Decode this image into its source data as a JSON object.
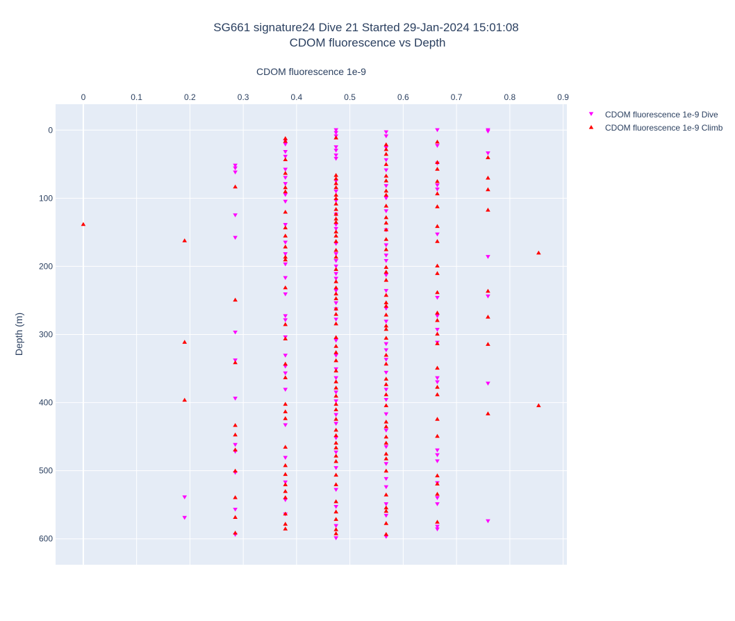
{
  "chart_data": {
    "type": "scatter",
    "title": "SG661 signature24 Dive 21 Started 29-Jan-2024 15:01:08",
    "subtitle": "CDOM fluorescence vs Depth",
    "xlabel": "CDOM fluorescence 1e-9",
    "ylabel": "Depth (m)",
    "x_axis_position": "top",
    "y_reversed": true,
    "xlim": [
      -0.052,
      0.907
    ],
    "ylim": [
      -38,
      638
    ],
    "xticks": [
      "0",
      "0.1",
      "0.2",
      "0.3",
      "0.4",
      "0.5",
      "0.6",
      "0.7",
      "0.8",
      "0.9"
    ],
    "xtick_values": [
      0,
      0.1,
      0.2,
      0.3,
      0.4,
      0.5,
      0.6,
      0.7,
      0.8,
      0.9
    ],
    "yticks": [
      "0",
      "100",
      "200",
      "300",
      "400",
      "500",
      "600"
    ],
    "ytick_values": [
      0,
      100,
      200,
      300,
      400,
      500,
      600
    ],
    "grid": true,
    "legend_position": "top-right",
    "colors": {
      "dive": "#ff00ff",
      "climb": "#ff0000",
      "plot_bg": "#e5ecf6",
      "grid": "#ffffff"
    },
    "series": [
      {
        "name": "CDOM fluorescence 1e-9 Dive",
        "marker": "triangle-down",
        "color": "#ff00ff",
        "points": [
          [
            0.285,
            52
          ],
          [
            0.285,
            56
          ],
          [
            0.285,
            62
          ],
          [
            0.285,
            125
          ],
          [
            0.285,
            158
          ],
          [
            0.285,
            297
          ],
          [
            0.285,
            338
          ],
          [
            0.285,
            394
          ],
          [
            0.285,
            462
          ],
          [
            0.285,
            472
          ],
          [
            0.285,
            503
          ],
          [
            0.285,
            557
          ],
          [
            0.285,
            594
          ],
          [
            0.19,
            539
          ],
          [
            0.19,
            569
          ],
          [
            0.379,
            16
          ],
          [
            0.379,
            21
          ],
          [
            0.379,
            32
          ],
          [
            0.379,
            39
          ],
          [
            0.379,
            58
          ],
          [
            0.379,
            70
          ],
          [
            0.379,
            79
          ],
          [
            0.379,
            95
          ],
          [
            0.379,
            105
          ],
          [
            0.379,
            139
          ],
          [
            0.379,
            165
          ],
          [
            0.379,
            182
          ],
          [
            0.379,
            197
          ],
          [
            0.379,
            217
          ],
          [
            0.379,
            241
          ],
          [
            0.379,
            273
          ],
          [
            0.379,
            279
          ],
          [
            0.379,
            304
          ],
          [
            0.379,
            331
          ],
          [
            0.379,
            347
          ],
          [
            0.379,
            357
          ],
          [
            0.379,
            381
          ],
          [
            0.379,
            433
          ],
          [
            0.379,
            481
          ],
          [
            0.379,
            517
          ],
          [
            0.379,
            543
          ],
          [
            0.379,
            564
          ],
          [
            0.474,
            0
          ],
          [
            0.474,
            4
          ],
          [
            0.474,
            9
          ],
          [
            0.474,
            25
          ],
          [
            0.474,
            30
          ],
          [
            0.474,
            37
          ],
          [
            0.474,
            42
          ],
          [
            0.474,
            75
          ],
          [
            0.474,
            90
          ],
          [
            0.474,
            104
          ],
          [
            0.474,
            124
          ],
          [
            0.474,
            139
          ],
          [
            0.474,
            145
          ],
          [
            0.474,
            167
          ],
          [
            0.474,
            182
          ],
          [
            0.474,
            192
          ],
          [
            0.474,
            200
          ],
          [
            0.474,
            211
          ],
          [
            0.474,
            218
          ],
          [
            0.474,
            236
          ],
          [
            0.474,
            254
          ],
          [
            0.474,
            263
          ],
          [
            0.474,
            278
          ],
          [
            0.474,
            309
          ],
          [
            0.474,
            331
          ],
          [
            0.474,
            351
          ],
          [
            0.474,
            364
          ],
          [
            0.474,
            385
          ],
          [
            0.474,
            398
          ],
          [
            0.474,
            418
          ],
          [
            0.474,
            431
          ],
          [
            0.474,
            452
          ],
          [
            0.474,
            473
          ],
          [
            0.474,
            496
          ],
          [
            0.474,
            528
          ],
          [
            0.474,
            553
          ],
          [
            0.474,
            581
          ],
          [
            0.474,
            599
          ],
          [
            0.568,
            3
          ],
          [
            0.568,
            9
          ],
          [
            0.568,
            26
          ],
          [
            0.568,
            44
          ],
          [
            0.568,
            59
          ],
          [
            0.568,
            82
          ],
          [
            0.568,
            100
          ],
          [
            0.568,
            119
          ],
          [
            0.568,
            147
          ],
          [
            0.568,
            169
          ],
          [
            0.568,
            184
          ],
          [
            0.568,
            192
          ],
          [
            0.568,
            213
          ],
          [
            0.568,
            236
          ],
          [
            0.568,
            262
          ],
          [
            0.568,
            281
          ],
          [
            0.568,
            314
          ],
          [
            0.568,
            323
          ],
          [
            0.568,
            337
          ],
          [
            0.568,
            356
          ],
          [
            0.568,
            381
          ],
          [
            0.568,
            396
          ],
          [
            0.568,
            417
          ],
          [
            0.568,
            441
          ],
          [
            0.568,
            465
          ],
          [
            0.568,
            490
          ],
          [
            0.568,
            512
          ],
          [
            0.568,
            524
          ],
          [
            0.568,
            549
          ],
          [
            0.568,
            566
          ],
          [
            0.568,
            597
          ],
          [
            0.664,
            0
          ],
          [
            0.664,
            23
          ],
          [
            0.664,
            49
          ],
          [
            0.664,
            81
          ],
          [
            0.664,
            87
          ],
          [
            0.664,
            153
          ],
          [
            0.664,
            246
          ],
          [
            0.664,
            273
          ],
          [
            0.664,
            293
          ],
          [
            0.664,
            312
          ],
          [
            0.664,
            364
          ],
          [
            0.664,
            370
          ],
          [
            0.664,
            470
          ],
          [
            0.664,
            477
          ],
          [
            0.664,
            486
          ],
          [
            0.664,
            518
          ],
          [
            0.664,
            540
          ],
          [
            0.664,
            549
          ],
          [
            0.664,
            582
          ],
          [
            0.664,
            586
          ],
          [
            0.759,
            0
          ],
          [
            0.759,
            2
          ],
          [
            0.759,
            34
          ],
          [
            0.759,
            186
          ],
          [
            0.759,
            244
          ],
          [
            0.759,
            372
          ],
          [
            0.759,
            574
          ]
        ]
      },
      {
        "name": "CDOM fluorescence 1e-9 Climb",
        "marker": "triangle-up",
        "color": "#ff0000",
        "points": [
          [
            0,
            138
          ],
          [
            0.19,
            162
          ],
          [
            0.19,
            311
          ],
          [
            0.19,
            396
          ],
          [
            0.285,
            83
          ],
          [
            0.285,
            249
          ],
          [
            0.285,
            341
          ],
          [
            0.285,
            433
          ],
          [
            0.285,
            447
          ],
          [
            0.285,
            469
          ],
          [
            0.285,
            500
          ],
          [
            0.285,
            539
          ],
          [
            0.285,
            568
          ],
          [
            0.285,
            591
          ],
          [
            0.379,
            12
          ],
          [
            0.379,
            16
          ],
          [
            0.379,
            43
          ],
          [
            0.379,
            63
          ],
          [
            0.379,
            84
          ],
          [
            0.379,
            90
          ],
          [
            0.379,
            120
          ],
          [
            0.379,
            143
          ],
          [
            0.379,
            155
          ],
          [
            0.379,
            171
          ],
          [
            0.379,
            186
          ],
          [
            0.379,
            190
          ],
          [
            0.379,
            231
          ],
          [
            0.379,
            285
          ],
          [
            0.379,
            306
          ],
          [
            0.379,
            343
          ],
          [
            0.379,
            363
          ],
          [
            0.379,
            402
          ],
          [
            0.379,
            413
          ],
          [
            0.379,
            423
          ],
          [
            0.379,
            465
          ],
          [
            0.379,
            492
          ],
          [
            0.379,
            505
          ],
          [
            0.379,
            520
          ],
          [
            0.379,
            530
          ],
          [
            0.379,
            539
          ],
          [
            0.379,
            563
          ],
          [
            0.379,
            578
          ],
          [
            0.379,
            585
          ],
          [
            0.474,
            11
          ],
          [
            0.474,
            66
          ],
          [
            0.474,
            71
          ],
          [
            0.474,
            78
          ],
          [
            0.474,
            84
          ],
          [
            0.474,
            95
          ],
          [
            0.474,
            100
          ],
          [
            0.474,
            108
          ],
          [
            0.474,
            116
          ],
          [
            0.474,
            123
          ],
          [
            0.474,
            130
          ],
          [
            0.474,
            135
          ],
          [
            0.474,
            149
          ],
          [
            0.474,
            155
          ],
          [
            0.474,
            163
          ],
          [
            0.474,
            176
          ],
          [
            0.474,
            186
          ],
          [
            0.474,
            204
          ],
          [
            0.474,
            222
          ],
          [
            0.474,
            231
          ],
          [
            0.474,
            240
          ],
          [
            0.474,
            247
          ],
          [
            0.474,
            262
          ],
          [
            0.474,
            270
          ],
          [
            0.474,
            284
          ],
          [
            0.474,
            304
          ],
          [
            0.474,
            317
          ],
          [
            0.474,
            326
          ],
          [
            0.474,
            338
          ],
          [
            0.474,
            353
          ],
          [
            0.474,
            369
          ],
          [
            0.474,
            378
          ],
          [
            0.474,
            390
          ],
          [
            0.474,
            402
          ],
          [
            0.474,
            410
          ],
          [
            0.474,
            424
          ],
          [
            0.474,
            440
          ],
          [
            0.474,
            448
          ],
          [
            0.474,
            459
          ],
          [
            0.474,
            466
          ],
          [
            0.474,
            478
          ],
          [
            0.474,
            486
          ],
          [
            0.474,
            506
          ],
          [
            0.474,
            520
          ],
          [
            0.474,
            545
          ],
          [
            0.474,
            560
          ],
          [
            0.474,
            571
          ],
          [
            0.474,
            586
          ],
          [
            0.474,
            592
          ],
          [
            0.568,
            21
          ],
          [
            0.568,
            28
          ],
          [
            0.568,
            35
          ],
          [
            0.568,
            50
          ],
          [
            0.568,
            67
          ],
          [
            0.568,
            74
          ],
          [
            0.568,
            89
          ],
          [
            0.568,
            95
          ],
          [
            0.568,
            111
          ],
          [
            0.568,
            128
          ],
          [
            0.568,
            136
          ],
          [
            0.568,
            146
          ],
          [
            0.568,
            160
          ],
          [
            0.568,
            175
          ],
          [
            0.568,
            201
          ],
          [
            0.568,
            208
          ],
          [
            0.568,
            220
          ],
          [
            0.568,
            242
          ],
          [
            0.568,
            253
          ],
          [
            0.568,
            258
          ],
          [
            0.568,
            271
          ],
          [
            0.568,
            287
          ],
          [
            0.568,
            292
          ],
          [
            0.568,
            305
          ],
          [
            0.568,
            330
          ],
          [
            0.568,
            343
          ],
          [
            0.568,
            365
          ],
          [
            0.568,
            373
          ],
          [
            0.568,
            388
          ],
          [
            0.568,
            404
          ],
          [
            0.568,
            428
          ],
          [
            0.568,
            435
          ],
          [
            0.568,
            450
          ],
          [
            0.568,
            459
          ],
          [
            0.568,
            475
          ],
          [
            0.568,
            482
          ],
          [
            0.568,
            500
          ],
          [
            0.568,
            535
          ],
          [
            0.568,
            554
          ],
          [
            0.568,
            559
          ],
          [
            0.568,
            577
          ],
          [
            0.568,
            593
          ],
          [
            0.664,
            17
          ],
          [
            0.664,
            47
          ],
          [
            0.664,
            57
          ],
          [
            0.664,
            75
          ],
          [
            0.664,
            93
          ],
          [
            0.664,
            112
          ],
          [
            0.664,
            141
          ],
          [
            0.664,
            163
          ],
          [
            0.664,
            199
          ],
          [
            0.664,
            210
          ],
          [
            0.664,
            238
          ],
          [
            0.664,
            268
          ],
          [
            0.664,
            279
          ],
          [
            0.664,
            299
          ],
          [
            0.664,
            313
          ],
          [
            0.664,
            349
          ],
          [
            0.664,
            377
          ],
          [
            0.664,
            388
          ],
          [
            0.664,
            424
          ],
          [
            0.664,
            449
          ],
          [
            0.664,
            507
          ],
          [
            0.664,
            519
          ],
          [
            0.664,
            534
          ],
          [
            0.664,
            575
          ],
          [
            0.759,
            40
          ],
          [
            0.759,
            70
          ],
          [
            0.759,
            87
          ],
          [
            0.759,
            117
          ],
          [
            0.759,
            236
          ],
          [
            0.759,
            274
          ],
          [
            0.759,
            314
          ],
          [
            0.759,
            416
          ],
          [
            0.854,
            180
          ],
          [
            0.854,
            404
          ]
        ]
      }
    ]
  }
}
